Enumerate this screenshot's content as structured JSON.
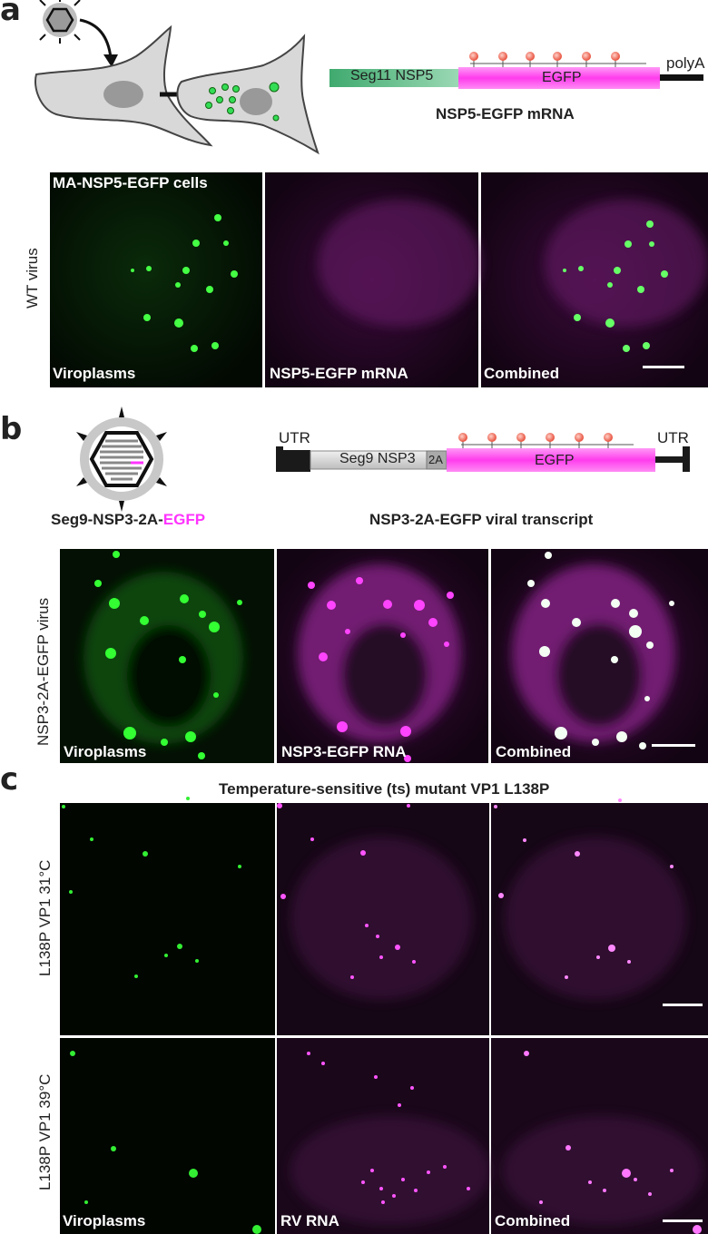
{
  "panel_a": {
    "letter": "a",
    "construct": {
      "seg": "Seg11 NSP5",
      "egfp": "EGFP",
      "polya": "polyA"
    },
    "caption": "NSP5-EGFP mRNA",
    "top_label": "MA-NSP5-EGFP cells",
    "row_label": "WT virus",
    "tiles": [
      "Viroplasms",
      "NSP5-EGFP mRNA",
      "Combined"
    ]
  },
  "panel_b": {
    "letter": "b",
    "virus_caption_prefix": "Seg9-NSP3-2A-",
    "virus_caption_highlight": "EGFP",
    "construct": {
      "utr_left": "UTR",
      "utr_right": "UTR",
      "seg": "Seg9 NSP3",
      "tag": "2A",
      "egfp": "EGFP"
    },
    "caption": "NSP3-2A-EGFP viral transcript",
    "row_label": "NSP3-2A-EGFP virus",
    "tiles": [
      "Viroplasms",
      "NSP3-EGFP RNA",
      "Combined"
    ]
  },
  "panel_c": {
    "letter": "c",
    "title": "Temperature-sensitive (ts) mutant VP1 L138P",
    "row1_label": "L138P VP1  31°C",
    "row2_label": "L138P VP1  39°C",
    "tiles": [
      "Viroplasms",
      "RV RNA",
      "Combined"
    ]
  },
  "colors": {
    "green": "#22dd22",
    "magenta": "#ff33ff",
    "seg_green": "#5ab98a",
    "egfp_magenta": "#ff5cf0",
    "dark": "#1a1a1a"
  }
}
